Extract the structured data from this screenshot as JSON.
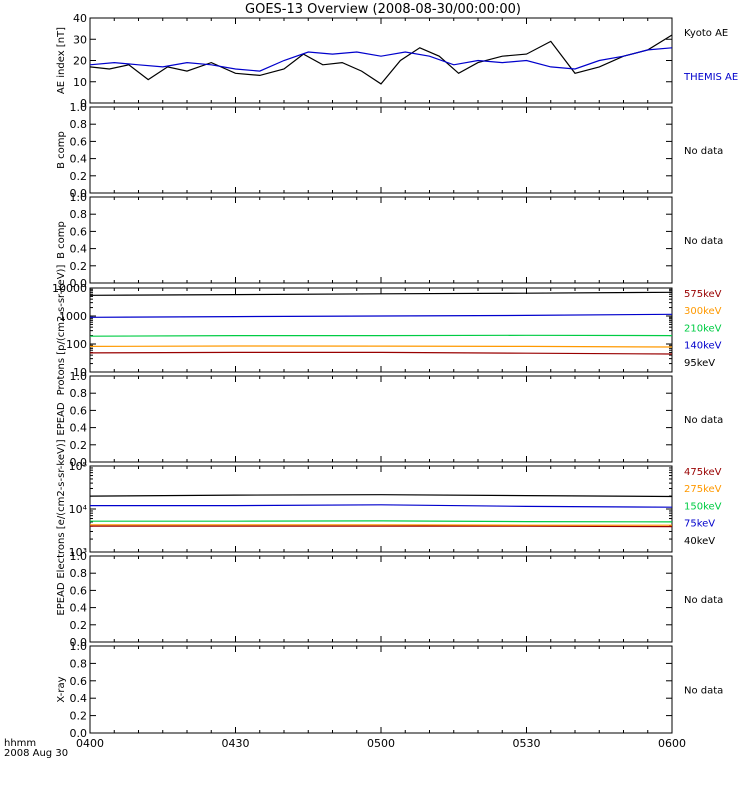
{
  "title": "GOES-13 Overview (2008-08-30/00:00:00)",
  "corner": {
    "line1": "hhmm",
    "line2": "2008 Aug 30"
  },
  "x_tick_labels": [
    "0400",
    "0430",
    "0500",
    "0530",
    "0600"
  ],
  "chart_data": [
    {
      "type": "line",
      "ylabel": "AE index [nT]",
      "ylim": [
        0,
        40
      ],
      "yticks": [
        "0",
        "10",
        "20",
        "30",
        "40"
      ],
      "xlim": [
        "04:00",
        "06:00"
      ],
      "series": [
        {
          "name": "Kyoto AE",
          "color": "#000000",
          "x": [
            "04:00",
            "04:04",
            "04:08",
            "04:12",
            "04:16",
            "04:20",
            "04:25",
            "04:30",
            "04:35",
            "04:40",
            "04:44",
            "04:48",
            "04:52",
            "04:56",
            "05:00",
            "05:04",
            "05:08",
            "05:12",
            "05:16",
            "05:20",
            "05:25",
            "05:30",
            "05:35",
            "05:40",
            "05:45",
            "05:50",
            "05:55",
            "06:00"
          ],
          "values": [
            17,
            16,
            18,
            11,
            17,
            15,
            19,
            14,
            13,
            16,
            23,
            18,
            19,
            15,
            9,
            20,
            26,
            22,
            14,
            19,
            22,
            23,
            29,
            14,
            17,
            22,
            25,
            32
          ]
        },
        {
          "name": "THEMIS AE",
          "color": "#0000cc",
          "x": [
            "04:00",
            "04:05",
            "04:10",
            "04:15",
            "04:20",
            "04:25",
            "04:30",
            "04:35",
            "04:40",
            "04:45",
            "04:50",
            "04:55",
            "05:00",
            "05:05",
            "05:10",
            "05:15",
            "05:20",
            "05:25",
            "05:30",
            "05:35",
            "05:40",
            "05:45",
            "05:50",
            "05:55",
            "06:00"
          ],
          "values": [
            18,
            19,
            18,
            17,
            19,
            18,
            16,
            15,
            20,
            24,
            23,
            24,
            22,
            24,
            22,
            18,
            20,
            19,
            20,
            17,
            16,
            20,
            22,
            25,
            26
          ]
        }
      ]
    },
    {
      "type": "line",
      "ylabel": "B comp",
      "ylim": [
        0,
        1
      ],
      "yticks": [
        "0.0",
        "0.2",
        "0.4",
        "0.6",
        "0.8",
        "1.0"
      ],
      "no_data": "No data",
      "series": []
    },
    {
      "type": "line",
      "ylabel": "B comp",
      "ylim": [
        0,
        1
      ],
      "yticks": [
        "0.0",
        "0.2",
        "0.4",
        "0.6",
        "0.8",
        "1.0"
      ],
      "no_data": "No data",
      "series": []
    },
    {
      "type": "line",
      "ylabel": "Protons [p/(cm2-s-sr-keV)]",
      "yscale": "log",
      "ylim": [
        10,
        10000
      ],
      "yticks": [
        "10",
        "100",
        "1000",
        "10000"
      ],
      "xlim": [
        "04:00",
        "06:00"
      ],
      "series": [
        {
          "name": "575keV",
          "color": "#990000",
          "x": [
            "04:00",
            "04:30",
            "05:00",
            "05:30",
            "06:00"
          ],
          "values": [
            48,
            50,
            50,
            47,
            44
          ]
        },
        {
          "name": "300keV",
          "color": "#ff9900",
          "x": [
            "04:00",
            "04:30",
            "05:00",
            "05:30",
            "06:00"
          ],
          "values": [
            82,
            85,
            84,
            82,
            78
          ]
        },
        {
          "name": "210keV",
          "color": "#00cc44",
          "x": [
            "04:00",
            "04:30",
            "05:00",
            "05:30",
            "06:00"
          ],
          "values": [
            190,
            200,
            200,
            205,
            200
          ]
        },
        {
          "name": "140keV",
          "color": "#0000cc",
          "x": [
            "04:00",
            "04:30",
            "05:00",
            "05:30",
            "06:00"
          ],
          "values": [
            900,
            950,
            1000,
            1050,
            1150
          ]
        },
        {
          "name": "95keV",
          "color": "#000000",
          "x": [
            "04:00",
            "04:30",
            "05:00",
            "05:30",
            "06:00"
          ],
          "values": [
            5500,
            5800,
            6200,
            6500,
            7000
          ]
        }
      ]
    },
    {
      "type": "line",
      "ylabel": "EPEAD",
      "ylim": [
        0,
        1
      ],
      "yticks": [
        "0.0",
        "0.2",
        "0.4",
        "0.6",
        "0.8",
        "1.0"
      ],
      "no_data": "No data",
      "series": []
    },
    {
      "type": "line",
      "ylabel": "Electrons [e/(cm2-s-sr-keV)]",
      "yscale": "log",
      "ylim": [
        1000,
        100000
      ],
      "yticks": [
        "10³",
        "10⁴",
        "10⁵"
      ],
      "xlim": [
        "04:00",
        "06:00"
      ],
      "series": [
        {
          "name": "475keV",
          "color": "#990000",
          "x": [
            "04:00",
            "04:30",
            "05:00",
            "05:30",
            "06:00"
          ],
          "values": [
            4000,
            4000,
            4000,
            4000,
            3900
          ]
        },
        {
          "name": "275keV",
          "color": "#ff9900",
          "x": [
            "04:00",
            "04:30",
            "05:00",
            "05:30",
            "06:00"
          ],
          "values": [
            4300,
            4300,
            4300,
            4200,
            4200
          ]
        },
        {
          "name": "150keV",
          "color": "#00cc44",
          "x": [
            "04:00",
            "04:30",
            "05:00",
            "05:30",
            "06:00"
          ],
          "values": [
            5200,
            5200,
            5300,
            5100,
            5000
          ]
        },
        {
          "name": "75keV",
          "color": "#0000cc",
          "x": [
            "04:00",
            "04:30",
            "05:00",
            "05:30",
            "06:00"
          ],
          "values": [
            12000,
            12000,
            12500,
            11500,
            11000
          ]
        },
        {
          "name": "40keV",
          "color": "#000000",
          "x": [
            "04:00",
            "04:30",
            "05:00",
            "05:30",
            "06:00"
          ],
          "values": [
            20000,
            21000,
            21500,
            20500,
            19500
          ]
        }
      ]
    },
    {
      "type": "line",
      "ylabel": "EPEAD",
      "ylim": [
        0,
        1
      ],
      "yticks": [
        "0.0",
        "0.2",
        "0.4",
        "0.6",
        "0.8",
        "1.0"
      ],
      "no_data": "No data",
      "series": []
    },
    {
      "type": "line",
      "ylabel": "X-ray",
      "ylim": [
        0,
        1
      ],
      "yticks": [
        "0.0",
        "0.2",
        "0.4",
        "0.6",
        "0.8",
        "1.0"
      ],
      "no_data": "No data",
      "series": []
    }
  ]
}
